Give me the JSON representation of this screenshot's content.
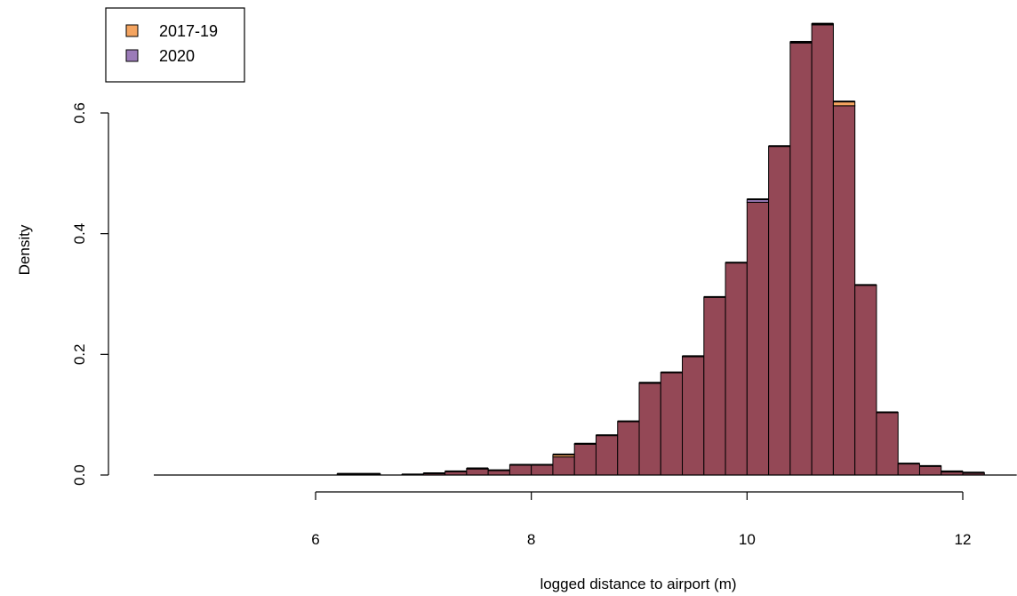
{
  "chart_data": {
    "type": "bar",
    "title": "",
    "xlabel": "logged distance to airport (m)",
    "ylabel": "Density",
    "xlim": [
      4.5,
      12.5
    ],
    "ylim": [
      0,
      0.75
    ],
    "x_ticks": [
      6,
      8,
      10,
      12
    ],
    "x_tick_labels": [
      "6",
      "8",
      "10",
      "12"
    ],
    "y_ticks": [
      0,
      0.2,
      0.4,
      0.6
    ],
    "y_tick_labels": [
      "0.0",
      "0.2",
      "0.4",
      "0.6"
    ],
    "bin_width": 0.2,
    "legend": {
      "position": "top-left",
      "entries": [
        {
          "label": "2017-19",
          "color": "#F4A460"
        },
        {
          "label": "2020",
          "color": "#9B7BB8"
        }
      ]
    },
    "overlap_color": "#944856",
    "series": [
      {
        "name": "2017-19",
        "color": "#F4A460",
        "bin_starts": [
          6.2,
          6.4,
          6.8,
          7.0,
          7.2,
          7.4,
          7.6,
          7.8,
          8.0,
          8.2,
          8.4,
          8.6,
          8.8,
          9.0,
          9.2,
          9.4,
          9.6,
          9.8,
          10.0,
          10.2,
          10.4,
          10.6,
          10.8,
          11.0,
          11.2,
          11.4,
          11.6,
          11.8,
          12.0
        ],
        "values": [
          0.002,
          0.002,
          0.001,
          0.003,
          0.006,
          0.01,
          0.008,
          0.017,
          0.017,
          0.034,
          0.051,
          0.066,
          0.089,
          0.152,
          0.17,
          0.196,
          0.295,
          0.352,
          0.452,
          0.545,
          0.716,
          0.746,
          0.619,
          0.315,
          0.104,
          0.019,
          0.015,
          0.006,
          0.004
        ]
      },
      {
        "name": "2020",
        "color": "#9B7BB8",
        "bin_starts": [
          6.2,
          6.4,
          6.8,
          7.0,
          7.2,
          7.4,
          7.6,
          7.8,
          8.0,
          8.2,
          8.4,
          8.6,
          8.8,
          9.0,
          9.2,
          9.4,
          9.6,
          9.8,
          10.0,
          10.2,
          10.4,
          10.6,
          10.8,
          11.0,
          11.2,
          11.4,
          11.6,
          11.8,
          12.0
        ],
        "values": [
          0.002,
          0.002,
          0.001,
          0.003,
          0.006,
          0.011,
          0.008,
          0.017,
          0.017,
          0.03,
          0.052,
          0.066,
          0.089,
          0.153,
          0.17,
          0.197,
          0.295,
          0.352,
          0.457,
          0.545,
          0.718,
          0.748,
          0.612,
          0.315,
          0.104,
          0.019,
          0.015,
          0.005,
          0.003
        ]
      }
    ]
  }
}
